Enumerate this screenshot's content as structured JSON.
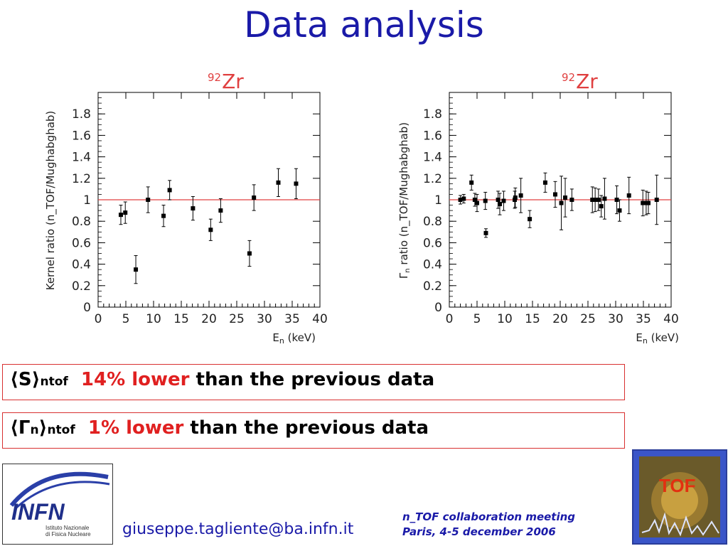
{
  "slide": {
    "title": "Data analysis",
    "email": "giuseppe.tagliente@ba.infn.it",
    "meeting_line1": "n_TOF collaboration meeting",
    "meeting_line2": "Paris, 4-5 december 2006"
  },
  "boxes": [
    {
      "symbol": "⟨S⟩",
      "subscript": "ntof",
      "highlight": "14% lower",
      "rest": "than the previous data"
    },
    {
      "symbol": "⟨Γ",
      "symbol_sub": "n",
      "symbol_close": "⟩",
      "subscript": "ntof",
      "highlight": "1% lower",
      "rest": "than the previous data"
    }
  ],
  "logos": {
    "infn_text": "INFN",
    "infn_sub1": "Istituto Nazionale",
    "infn_sub2": "di Fisica Nucleare",
    "tof_text": "TOF"
  },
  "colors": {
    "title": "#1a1aa8",
    "reference_line": "#e04040",
    "highlight": "#e02020",
    "box_border": "#d83030"
  },
  "chart_data": [
    {
      "type": "scatter",
      "isotope_mass": "92",
      "isotope_symbol": "Zr",
      "xlabel": "E",
      "xlabel_sub": "n",
      "xlabel_unit": " (keV)",
      "ylabel": "Kernel ratio (n_TOF/Mughabghab)",
      "xlim": [
        0,
        40
      ],
      "ylim": [
        0,
        2.0
      ],
      "x_ticks": [
        "0",
        "5",
        "10",
        "15",
        "20",
        "25",
        "30",
        "35",
        "40"
      ],
      "y_ticks": [
        "0",
        "0.2",
        "0.4",
        "0.6",
        "0.8",
        "1",
        "1.2",
        "1.4",
        "1.6",
        "1.8"
      ],
      "reference_line": 1,
      "points": [
        {
          "x": 4.1,
          "y": 0.86,
          "err": 0.09
        },
        {
          "x": 4.9,
          "y": 0.88,
          "err": 0.1
        },
        {
          "x": 6.8,
          "y": 0.35,
          "err": 0.13
        },
        {
          "x": 9.0,
          "y": 1.0,
          "err": 0.12
        },
        {
          "x": 11.8,
          "y": 0.85,
          "err": 0.1
        },
        {
          "x": 12.9,
          "y": 1.09,
          "err": 0.09
        },
        {
          "x": 17.1,
          "y": 0.92,
          "err": 0.11
        },
        {
          "x": 20.3,
          "y": 0.72,
          "err": 0.1
        },
        {
          "x": 22.1,
          "y": 0.9,
          "err": 0.11
        },
        {
          "x": 27.3,
          "y": 0.5,
          "err": 0.12
        },
        {
          "x": 28.1,
          "y": 1.02,
          "err": 0.12
        },
        {
          "x": 32.5,
          "y": 1.16,
          "err": 0.13
        },
        {
          "x": 35.7,
          "y": 1.15,
          "err": 0.14
        }
      ]
    },
    {
      "type": "scatter",
      "isotope_mass": "92",
      "isotope_symbol": "Zr",
      "xlabel": "E",
      "xlabel_sub": "n",
      "xlabel_unit": " (keV)",
      "ylabel_prefix": "Γ",
      "ylabel_sub": "n",
      "ylabel": " ratio (n_TOF/Mughabghab)",
      "xlim": [
        0,
        40
      ],
      "ylim": [
        0,
        2.0
      ],
      "x_ticks": [
        "0",
        "5",
        "10",
        "15",
        "20",
        "25",
        "30",
        "35",
        "40"
      ],
      "y_ticks": [
        "0",
        "0.2",
        "0.4",
        "0.6",
        "0.8",
        "1",
        "1.2",
        "1.4",
        "1.6",
        "1.8"
      ],
      "reference_line": 1,
      "points": [
        {
          "x": 2.0,
          "y": 1.0,
          "err": 0.04
        },
        {
          "x": 2.6,
          "y": 1.01,
          "err": 0.04
        },
        {
          "x": 4.0,
          "y": 1.16,
          "err": 0.07
        },
        {
          "x": 4.6,
          "y": 1.0,
          "err": 0.06
        },
        {
          "x": 5.0,
          "y": 0.97,
          "err": 0.08
        },
        {
          "x": 6.5,
          "y": 0.99,
          "err": 0.08
        },
        {
          "x": 6.6,
          "y": 0.69,
          "err": 0.04
        },
        {
          "x": 8.8,
          "y": 1.0,
          "err": 0.08
        },
        {
          "x": 9.1,
          "y": 0.96,
          "err": 0.1
        },
        {
          "x": 9.8,
          "y": 0.99,
          "err": 0.09
        },
        {
          "x": 11.8,
          "y": 1.0,
          "err": 0.08
        },
        {
          "x": 11.9,
          "y": 1.02,
          "err": 0.09
        },
        {
          "x": 12.9,
          "y": 1.04,
          "err": 0.16
        },
        {
          "x": 14.5,
          "y": 0.82,
          "err": 0.08
        },
        {
          "x": 17.3,
          "y": 1.16,
          "err": 0.09
        },
        {
          "x": 19.1,
          "y": 1.05,
          "err": 0.12
        },
        {
          "x": 20.2,
          "y": 0.97,
          "err": 0.25
        },
        {
          "x": 20.9,
          "y": 1.02,
          "err": 0.18
        },
        {
          "x": 22.1,
          "y": 1.0,
          "err": 0.1
        },
        {
          "x": 25.8,
          "y": 1.0,
          "err": 0.12
        },
        {
          "x": 26.3,
          "y": 1.0,
          "err": 0.11
        },
        {
          "x": 26.9,
          "y": 1.0,
          "err": 0.1
        },
        {
          "x": 27.4,
          "y": 0.94,
          "err": 0.1
        },
        {
          "x": 28.0,
          "y": 1.01,
          "err": 0.19
        },
        {
          "x": 30.2,
          "y": 1.0,
          "err": 0.13
        },
        {
          "x": 30.7,
          "y": 0.9,
          "err": 0.1
        },
        {
          "x": 32.4,
          "y": 1.04,
          "err": 0.17
        },
        {
          "x": 34.9,
          "y": 0.97,
          "err": 0.12
        },
        {
          "x": 35.5,
          "y": 0.97,
          "err": 0.11
        },
        {
          "x": 35.9,
          "y": 0.97,
          "err": 0.1
        },
        {
          "x": 37.4,
          "y": 1.0,
          "err": 0.23
        }
      ]
    }
  ]
}
